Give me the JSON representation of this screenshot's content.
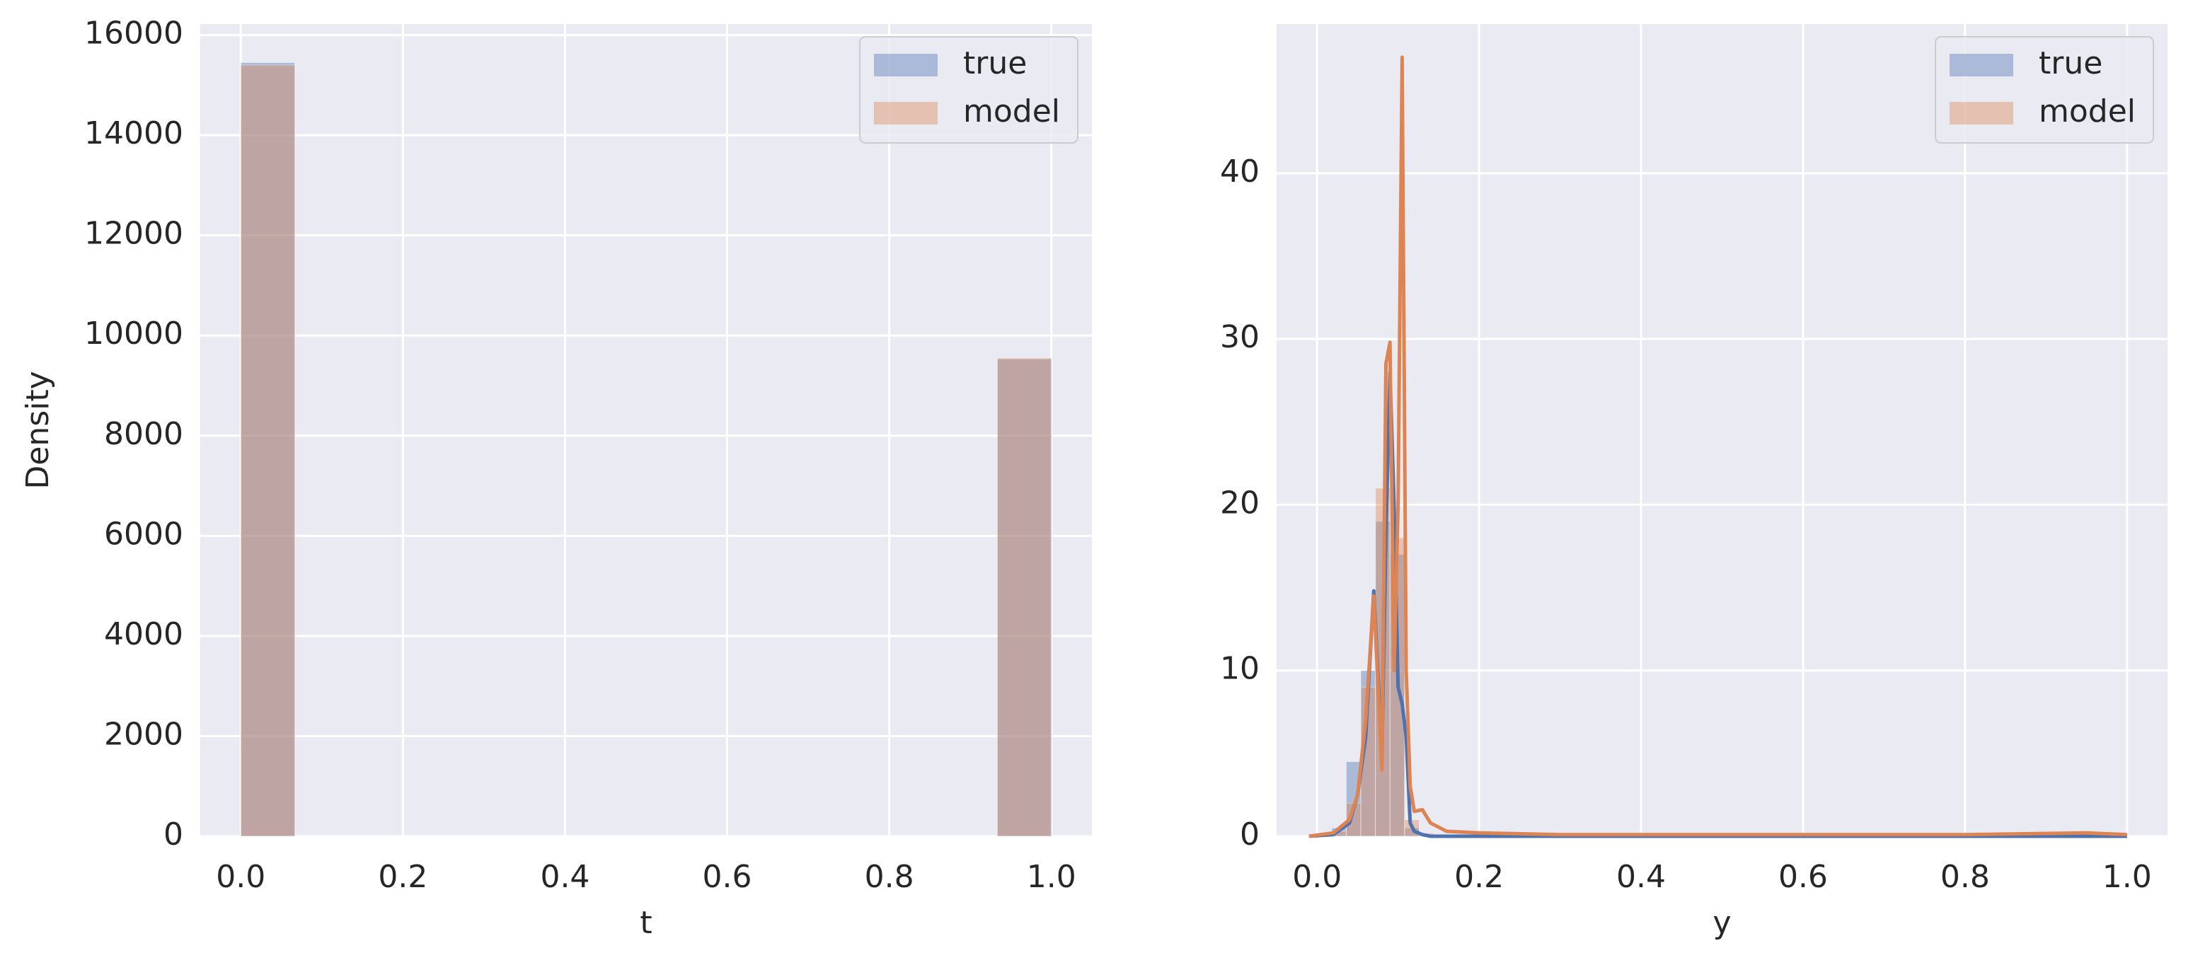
{
  "chart_data": [
    {
      "type": "histogram",
      "xlabel": "t",
      "ylabel": "Density",
      "bins": [
        0,
        0.0667,
        0.1333,
        0.2,
        0.2667,
        0.3333,
        0.4,
        0.4667,
        0.5333,
        0.6,
        0.6667,
        0.7333,
        0.8,
        0.8667,
        0.9333,
        1
      ],
      "series": [
        {
          "name": "true",
          "color": "#4c72b0",
          "values": [
            15450,
            0,
            0,
            0,
            0,
            0,
            0,
            0,
            0,
            0,
            0,
            0,
            0,
            0,
            9530
          ]
        },
        {
          "name": "model",
          "color": "#dd8452",
          "values": [
            15400,
            0,
            0,
            0,
            0,
            0,
            0,
            0,
            0,
            0,
            0,
            0,
            0,
            0,
            9550
          ]
        }
      ],
      "xlim": [
        -0.05,
        1.05
      ],
      "ylim": [
        0,
        16220
      ],
      "xticks": [
        {
          "value": 0,
          "label": "0.0"
        },
        {
          "value": 0.2,
          "label": "0.2"
        },
        {
          "value": 0.4,
          "label": "0.4"
        },
        {
          "value": 0.6,
          "label": "0.6"
        },
        {
          "value": 0.8,
          "label": "0.8"
        },
        {
          "value": 1,
          "label": "1.0"
        }
      ],
      "yticks": [
        0,
        2000,
        4000,
        6000,
        8000,
        10000,
        12000,
        14000,
        16000
      ],
      "grid": true,
      "legend": "upper-right"
    },
    {
      "type": "histogram",
      "xlabel": "y",
      "bins": [
        0,
        0.018,
        0.036,
        0.054,
        0.072,
        0.09,
        0.108,
        0.126,
        0.144
      ],
      "kde_x": [
        -0.01,
        0.02,
        0.04,
        0.05,
        0.06,
        0.07,
        0.08,
        0.085,
        0.09,
        0.095,
        0.1,
        0.105,
        0.11,
        0.115,
        0.12,
        0.13,
        0.14,
        0.16,
        0.2,
        0.3,
        0.5,
        0.8,
        0.95,
        1.0
      ],
      "series": [
        {
          "name": "true",
          "color": "#4c72b0",
          "values": [
            0.1,
            0.5,
            4.5,
            10,
            19,
            17,
            0.5,
            0.1
          ],
          "kde_values": [
            0,
            0.1,
            0.8,
            2.5,
            6,
            14.8,
            5,
            18,
            28,
            20,
            9,
            8,
            6,
            0.8,
            0.3,
            0.1,
            0,
            0,
            0,
            0,
            0,
            0,
            0,
            0
          ]
        },
        {
          "name": "model",
          "color": "#dd8452",
          "values": [
            0.1,
            0.3,
            2,
            9,
            21,
            18,
            1,
            0.2
          ],
          "kde_values": [
            0,
            0.2,
            1,
            2.5,
            7,
            14.5,
            4,
            28.5,
            29.8,
            10,
            20,
            47,
            10,
            3,
            1.5,
            1.6,
            0.8,
            0.3,
            0.2,
            0.1,
            0.1,
            0.1,
            0.2,
            0.1
          ]
        }
      ],
      "xlim": [
        -0.05,
        1.05
      ],
      "ylim": [
        0,
        49
      ],
      "xticks": [
        {
          "value": 0,
          "label": "0.0"
        },
        {
          "value": 0.2,
          "label": "0.2"
        },
        {
          "value": 0.4,
          "label": "0.4"
        },
        {
          "value": 0.6,
          "label": "0.6"
        },
        {
          "value": 0.8,
          "label": "0.8"
        },
        {
          "value": 1,
          "label": "1.0"
        }
      ],
      "yticks": [
        0,
        10,
        20,
        30,
        40
      ],
      "grid": true,
      "legend": "upper-right"
    }
  ]
}
